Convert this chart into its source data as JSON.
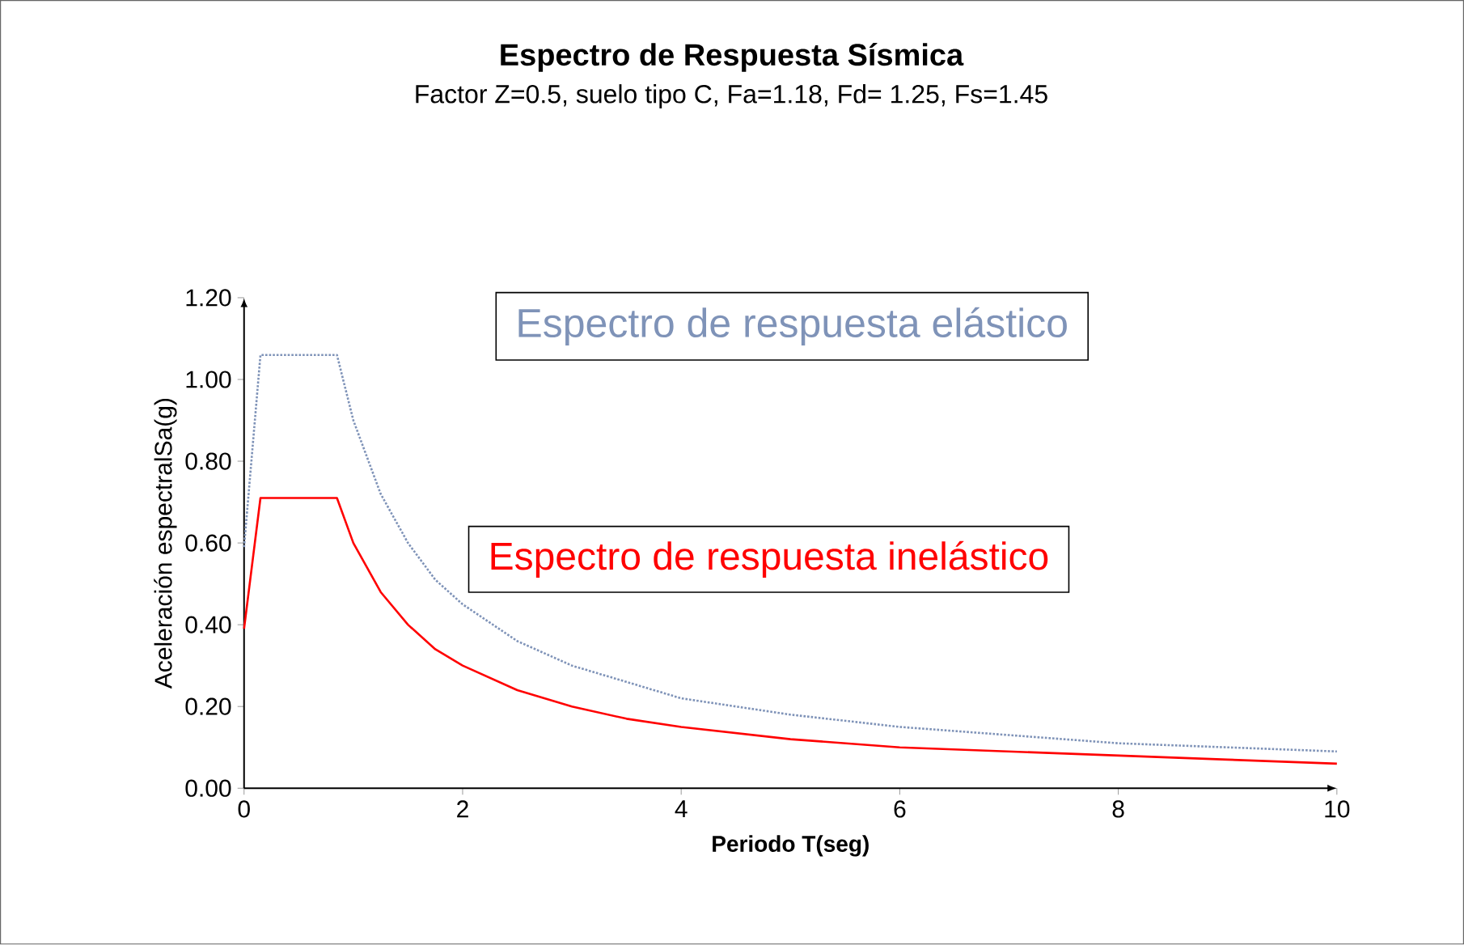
{
  "chart_data": {
    "type": "line",
    "title": "Espectro de Respuesta Sísmica",
    "subtitle": "Factor Z=0.5, suelo tipo C, Fa=1.18, Fd= 1.25, Fs=1.45",
    "xlabel": "Periodo T(seg)",
    "ylabel": "Aceleración espectralSa(g)",
    "x": [
      0,
      0.15,
      0.85,
      1,
      1.25,
      1.5,
      1.75,
      2,
      2.5,
      3,
      3.5,
      4,
      5,
      6,
      7,
      8,
      9,
      10
    ],
    "series": [
      {
        "name": "Espectro de respuesta elástico",
        "color": "#7f93b8",
        "line_style": "dotted",
        "values": [
          0.59,
          1.06,
          1.06,
          0.9,
          0.72,
          0.6,
          0.51,
          0.45,
          0.36,
          0.3,
          0.26,
          0.22,
          0.18,
          0.15,
          0.13,
          0.11,
          0.1,
          0.09
        ]
      },
      {
        "name": "Espectro de respuesta inelástico",
        "color": "#ff0000",
        "line_style": "solid",
        "values": [
          0.39,
          0.71,
          0.71,
          0.6,
          0.48,
          0.4,
          0.34,
          0.3,
          0.24,
          0.2,
          0.17,
          0.15,
          0.12,
          0.1,
          0.09,
          0.08,
          0.07,
          0.06
        ]
      }
    ],
    "xlim": [
      0,
      10
    ],
    "ylim": [
      0,
      1.2
    ],
    "xticks": [
      0,
      2,
      4,
      6,
      8,
      10
    ],
    "yticks": [
      {
        "value": 0,
        "label": "0.00"
      },
      {
        "value": 0.2,
        "label": "0.20"
      },
      {
        "value": 0.4,
        "label": "0.40"
      },
      {
        "value": 0.6,
        "label": "0.60"
      },
      {
        "value": 0.8,
        "label": "0.80"
      },
      {
        "value": 1.0,
        "label": "1.00"
      },
      {
        "value": 1.2,
        "label": "1.20"
      }
    ],
    "grid": false,
    "legend": false,
    "marker": "none"
  }
}
